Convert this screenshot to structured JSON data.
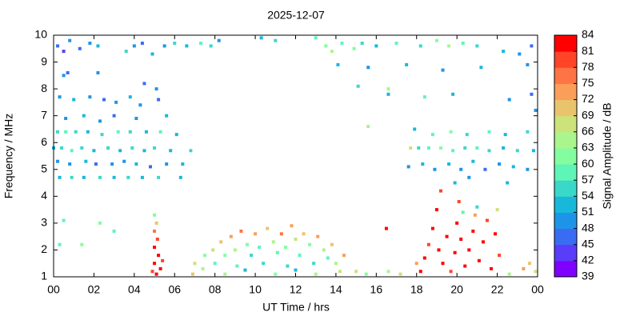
{
  "chart_data": {
    "type": "heatmap-scatter",
    "title": "2025-12-07",
    "x_label": "UT Time / hrs",
    "y_label": "Frequency / MHz",
    "xlim": [
      0,
      24
    ],
    "xticks": [
      {
        "value": 0,
        "label": "00"
      },
      {
        "value": 2,
        "label": "02"
      },
      {
        "value": 4,
        "label": "04"
      },
      {
        "value": 6,
        "label": "06"
      },
      {
        "value": 8,
        "label": "08"
      },
      10,
      12,
      14,
      16,
      18,
      20,
      22,
      {
        "value": 24,
        "label": "00"
      }
    ],
    "ylim": [
      1,
      10
    ],
    "yticks": [
      1,
      2,
      3,
      4,
      5,
      6,
      7,
      8,
      9,
      10
    ],
    "colorbar": {
      "label": "Signal Amplitude / dB",
      "lim": [
        39,
        84
      ],
      "ticks": [
        39,
        42,
        45,
        48,
        51,
        54,
        57,
        60,
        63,
        66,
        69,
        72,
        75,
        78,
        81,
        84
      ],
      "colors": [
        "#7f00ff",
        "#5a3cfb",
        "#3a6cf3",
        "#1e94e8",
        "#18b8da",
        "#3ad8c9",
        "#5ef5b6",
        "#84fda0",
        "#aaf58c",
        "#cce27a",
        "#eac46c",
        "#fa9e5a",
        "#ff7444",
        "#ff4428",
        "#ff0000"
      ]
    },
    "points": [
      [
        0.2,
        9.6,
        45
      ],
      [
        0.5,
        9.4,
        42
      ],
      [
        0.8,
        9.8,
        48
      ],
      [
        1.3,
        9.5,
        45
      ],
      [
        1.8,
        9.7,
        48
      ],
      [
        2.2,
        9.6,
        51
      ],
      [
        3.6,
        9.4,
        54
      ],
      [
        4.0,
        9.6,
        48
      ],
      [
        4.4,
        9.7,
        45
      ],
      [
        4.9,
        9.3,
        51
      ],
      [
        5.5,
        9.6,
        48
      ],
      [
        6.0,
        9.7,
        54
      ],
      [
        6.6,
        9.6,
        51
      ],
      [
        7.3,
        9.7,
        57
      ],
      [
        7.8,
        9.6,
        54
      ],
      [
        8.2,
        9.8,
        48
      ],
      [
        0.5,
        8.5,
        48
      ],
      [
        0.7,
        8.6,
        45
      ],
      [
        2.2,
        8.6,
        48
      ],
      [
        4.5,
        8.2,
        45
      ],
      [
        5.1,
        8.0,
        48
      ],
      [
        0.3,
        7.7,
        48
      ],
      [
        1.0,
        7.6,
        51
      ],
      [
        1.8,
        7.7,
        48
      ],
      [
        2.5,
        7.6,
        45
      ],
      [
        3.1,
        7.5,
        48
      ],
      [
        3.8,
        7.7,
        51
      ],
      [
        4.3,
        7.4,
        48
      ],
      [
        5.2,
        7.6,
        45
      ],
      [
        0.6,
        6.9,
        48
      ],
      [
        1.5,
        7.0,
        51
      ],
      [
        2.3,
        6.8,
        48
      ],
      [
        3.0,
        7.0,
        45
      ],
      [
        4.1,
        6.9,
        48
      ],
      [
        5.6,
        7.0,
        51
      ],
      [
        0.2,
        6.4,
        54
      ],
      [
        0.6,
        6.4,
        57
      ],
      [
        1.1,
        6.4,
        54
      ],
      [
        1.7,
        6.4,
        51
      ],
      [
        2.4,
        6.3,
        54
      ],
      [
        3.2,
        6.4,
        57
      ],
      [
        3.8,
        6.4,
        54
      ],
      [
        4.6,
        6.4,
        51
      ],
      [
        5.3,
        6.4,
        57
      ],
      [
        6.1,
        6.3,
        51
      ],
      [
        0.0,
        5.8,
        51
      ],
      [
        0.4,
        5.8,
        54
      ],
      [
        0.9,
        5.7,
        57
      ],
      [
        1.4,
        5.8,
        54
      ],
      [
        2.0,
        5.7,
        51
      ],
      [
        2.7,
        5.8,
        54
      ],
      [
        3.3,
        5.7,
        51
      ],
      [
        3.9,
        5.8,
        54
      ],
      [
        4.5,
        5.7,
        51
      ],
      [
        5.0,
        5.8,
        54
      ],
      [
        5.8,
        5.7,
        51
      ],
      [
        6.8,
        5.7,
        54
      ],
      [
        0.2,
        5.3,
        48
      ],
      [
        0.8,
        5.2,
        48
      ],
      [
        1.6,
        5.3,
        51
      ],
      [
        2.1,
        5.2,
        45
      ],
      [
        2.9,
        5.2,
        48
      ],
      [
        3.5,
        5.3,
        48
      ],
      [
        4.1,
        5.2,
        51
      ],
      [
        4.8,
        5.1,
        45
      ],
      [
        5.6,
        5.2,
        48
      ],
      [
        6.4,
        5.2,
        51
      ],
      [
        0.3,
        4.7,
        51
      ],
      [
        0.9,
        4.7,
        54
      ],
      [
        1.5,
        4.7,
        51
      ],
      [
        2.3,
        4.7,
        54
      ],
      [
        3.0,
        4.7,
        51
      ],
      [
        3.7,
        4.7,
        54
      ],
      [
        4.4,
        4.7,
        51
      ],
      [
        5.2,
        4.7,
        54
      ],
      [
        6.3,
        4.7,
        51
      ],
      [
        0.5,
        3.1,
        57
      ],
      [
        2.3,
        3.0,
        60
      ],
      [
        3.0,
        2.7,
        57
      ],
      [
        0.3,
        2.2,
        57
      ],
      [
        1.4,
        2.2,
        60
      ],
      [
        5.0,
        3.3,
        60
      ],
      [
        5.1,
        3.0,
        69
      ],
      [
        5.0,
        2.7,
        75
      ],
      [
        5.15,
        2.4,
        78
      ],
      [
        5.0,
        2.1,
        81
      ],
      [
        5.2,
        1.8,
        84
      ],
      [
        5.0,
        1.5,
        81
      ],
      [
        5.3,
        1.3,
        84
      ],
      [
        5.1,
        1.1,
        81
      ],
      [
        4.9,
        1.2,
        78
      ],
      [
        5.4,
        1.6,
        78
      ],
      [
        6.9,
        1.1,
        69
      ],
      [
        7.0,
        1.5,
        66
      ],
      [
        7.4,
        1.3,
        63
      ],
      [
        7.5,
        1.8,
        60
      ],
      [
        7.9,
        2.0,
        66
      ],
      [
        8.0,
        1.5,
        57
      ],
      [
        8.3,
        2.3,
        69
      ],
      [
        8.5,
        1.8,
        60
      ],
      [
        8.8,
        2.5,
        72
      ],
      [
        9.0,
        2.0,
        63
      ],
      [
        9.1,
        1.4,
        57
      ],
      [
        9.3,
        2.7,
        75
      ],
      [
        9.6,
        2.2,
        60
      ],
      [
        9.8,
        1.8,
        54
      ],
      [
        10.0,
        2.6,
        72
      ],
      [
        10.2,
        2.1,
        57
      ],
      [
        10.4,
        1.5,
        54
      ],
      [
        10.6,
        2.8,
        69
      ],
      [
        10.9,
        2.3,
        63
      ],
      [
        11.1,
        1.9,
        57
      ],
      [
        11.3,
        2.6,
        75
      ],
      [
        11.5,
        2.1,
        60
      ],
      [
        11.6,
        1.4,
        54
      ],
      [
        11.8,
        2.9,
        72
      ],
      [
        12.0,
        2.4,
        66
      ],
      [
        12.2,
        1.8,
        57
      ],
      [
        12.4,
        2.6,
        69
      ],
      [
        12.7,
        2.2,
        60
      ],
      [
        12.9,
        1.5,
        54
      ],
      [
        13.1,
        2.5,
        72
      ],
      [
        13.4,
        2.0,
        63
      ],
      [
        13.6,
        1.7,
        57
      ],
      [
        13.8,
        2.2,
        69
      ],
      [
        14.0,
        1.5,
        63
      ],
      [
        14.2,
        1.2,
        66
      ],
      [
        14.4,
        1.8,
        72
      ],
      [
        8.5,
        1.1,
        63
      ],
      [
        11.0,
        1.1,
        60
      ],
      [
        13.0,
        1.1,
        63
      ],
      [
        9.5,
        1.25,
        51
      ],
      [
        12.0,
        1.25,
        51
      ],
      [
        15.0,
        1.2,
        66
      ],
      [
        15.5,
        1.1,
        60
      ],
      [
        16.6,
        1.2,
        63
      ],
      [
        17.2,
        1.1,
        66
      ],
      [
        16.5,
        2.8,
        81
      ],
      [
        18.2,
        1.2,
        81
      ],
      [
        18.4,
        1.7,
        84
      ],
      [
        18.6,
        2.2,
        78
      ],
      [
        18.8,
        2.8,
        81
      ],
      [
        19.0,
        3.5,
        84
      ],
      [
        19.2,
        4.2,
        78
      ],
      [
        19.1,
        2.0,
        84
      ],
      [
        19.3,
        1.5,
        81
      ],
      [
        19.5,
        2.5,
        84
      ],
      [
        19.7,
        1.2,
        78
      ],
      [
        19.9,
        1.9,
        81
      ],
      [
        20.0,
        3.0,
        84
      ],
      [
        20.1,
        3.8,
        78
      ],
      [
        20.2,
        2.4,
        84
      ],
      [
        20.4,
        1.4,
        81
      ],
      [
        20.6,
        2.0,
        84
      ],
      [
        20.8,
        2.7,
        81
      ],
      [
        20.9,
        3.3,
        72
      ],
      [
        21.1,
        1.6,
        84
      ],
      [
        21.3,
        2.3,
        81
      ],
      [
        21.5,
        3.1,
        78
      ],
      [
        21.7,
        1.3,
        84
      ],
      [
        21.9,
        2.6,
        81
      ],
      [
        22.0,
        3.5,
        66
      ],
      [
        22.1,
        1.8,
        78
      ],
      [
        20.3,
        3.4,
        57
      ],
      [
        21.0,
        3.6,
        54
      ],
      [
        18.0,
        1.5,
        72
      ],
      [
        23.3,
        1.3,
        72
      ],
      [
        23.6,
        1.5,
        69
      ],
      [
        23.9,
        1.2,
        66
      ],
      [
        22.6,
        1.1,
        63
      ],
      [
        13.0,
        9.9,
        57
      ],
      [
        13.5,
        9.6,
        60
      ],
      [
        13.8,
        9.4,
        63
      ],
      [
        14.3,
        9.7,
        57
      ],
      [
        14.9,
        9.5,
        60
      ],
      [
        15.3,
        9.7,
        54
      ],
      [
        16.0,
        9.6,
        51
      ],
      [
        17.0,
        9.7,
        57
      ],
      [
        18.2,
        9.6,
        54
      ],
      [
        19.0,
        9.8,
        60
      ],
      [
        19.6,
        9.6,
        63
      ],
      [
        20.3,
        9.7,
        57
      ],
      [
        21.0,
        9.6,
        54
      ],
      [
        22.3,
        9.4,
        51
      ],
      [
        23.1,
        9.3,
        48
      ],
      [
        23.7,
        9.6,
        45
      ],
      [
        10.3,
        9.9,
        51
      ],
      [
        11.0,
        9.8,
        54
      ],
      [
        14.1,
        8.9,
        51
      ],
      [
        15.6,
        8.8,
        48
      ],
      [
        17.5,
        8.9,
        51
      ],
      [
        19.3,
        8.7,
        48
      ],
      [
        21.2,
        8.8,
        51
      ],
      [
        23.5,
        8.9,
        48
      ],
      [
        15.1,
        8.1,
        54
      ],
      [
        16.6,
        7.8,
        51
      ],
      [
        18.4,
        7.7,
        57
      ],
      [
        19.8,
        7.8,
        51
      ],
      [
        22.6,
        7.6,
        48
      ],
      [
        23.7,
        7.8,
        45
      ],
      [
        23.9,
        7.2,
        48
      ],
      [
        17.9,
        6.5,
        51
      ],
      [
        18.8,
        6.3,
        57
      ],
      [
        19.7,
        6.4,
        60
      ],
      [
        20.5,
        6.3,
        54
      ],
      [
        21.6,
        6.4,
        57
      ],
      [
        22.4,
        6.3,
        51
      ],
      [
        23.5,
        6.4,
        54
      ],
      [
        18.1,
        5.8,
        54
      ],
      [
        18.6,
        5.8,
        57
      ],
      [
        19.2,
        5.8,
        60
      ],
      [
        19.8,
        5.7,
        57
      ],
      [
        20.4,
        5.8,
        54
      ],
      [
        21.0,
        5.8,
        57
      ],
      [
        21.6,
        5.7,
        54
      ],
      [
        22.3,
        5.8,
        51
      ],
      [
        23.0,
        5.7,
        54
      ],
      [
        23.8,
        5.7,
        51
      ],
      [
        17.6,
        5.1,
        48
      ],
      [
        18.3,
        5.2,
        51
      ],
      [
        18.9,
        5.0,
        48
      ],
      [
        19.6,
        5.2,
        51
      ],
      [
        20.2,
        5.0,
        48
      ],
      [
        20.8,
        5.3,
        51
      ],
      [
        21.4,
        5.0,
        45
      ],
      [
        22.1,
        5.2,
        48
      ],
      [
        22.8,
        5.1,
        51
      ],
      [
        23.5,
        5.0,
        48
      ],
      [
        19.9,
        4.5,
        51
      ],
      [
        20.6,
        4.7,
        48
      ],
      [
        22.5,
        4.5,
        51
      ],
      [
        16.6,
        8.0,
        63
      ],
      [
        15.6,
        6.6,
        63
      ],
      [
        17.7,
        5.8,
        66
      ]
    ]
  }
}
